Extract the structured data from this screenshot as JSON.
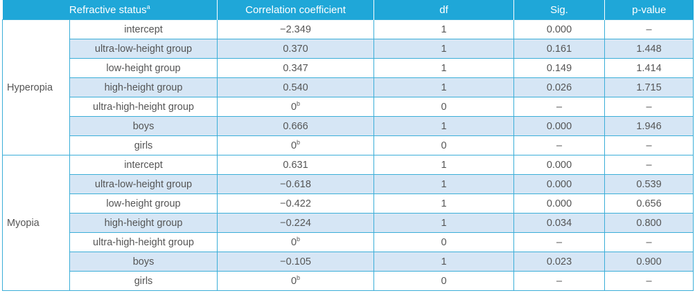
{
  "table": {
    "headers": {
      "status": "Refractive status",
      "status_sup": "a",
      "coef": "Correlation coefficient",
      "df": "df",
      "sig": "Sig.",
      "p": "p-value"
    },
    "groups": [
      {
        "label": "Hyperopia",
        "rows": [
          {
            "name": "intercept",
            "coef": "−2.349",
            "coef_sup": "",
            "df": "1",
            "sig": "0.000",
            "p": "–"
          },
          {
            "name": "ultra-low-height group",
            "coef": "0.370",
            "coef_sup": "",
            "df": "1",
            "sig": "0.161",
            "p": "1.448"
          },
          {
            "name": "low-height group",
            "coef": "0.347",
            "coef_sup": "",
            "df": "1",
            "sig": "0.149",
            "p": "1.414"
          },
          {
            "name": "high-height group",
            "coef": "0.540",
            "coef_sup": "",
            "df": "1",
            "sig": "0.026",
            "p": "1.715"
          },
          {
            "name": "ultra-high-height group",
            "coef": "0",
            "coef_sup": "b",
            "df": "0",
            "sig": "–",
            "p": "–"
          },
          {
            "name": "boys",
            "coef": "0.666",
            "coef_sup": "",
            "df": "1",
            "sig": "0.000",
            "p": "1.946"
          },
          {
            "name": "girls",
            "coef": "0",
            "coef_sup": "b",
            "df": "0",
            "sig": "–",
            "p": "–"
          }
        ]
      },
      {
        "label": "Myopia",
        "rows": [
          {
            "name": "intercept",
            "coef": "0.631",
            "coef_sup": "",
            "df": "1",
            "sig": "0.000",
            "p": "–"
          },
          {
            "name": "ultra-low-height group",
            "coef": "−0.618",
            "coef_sup": "",
            "df": "1",
            "sig": "0.000",
            "p": "0.539"
          },
          {
            "name": "low-height group",
            "coef": "−0.422",
            "coef_sup": "",
            "df": "1",
            "sig": "0.000",
            "p": "0.656"
          },
          {
            "name": "high-height group",
            "coef": "−0.224",
            "coef_sup": "",
            "df": "1",
            "sig": "0.034",
            "p": "0.800"
          },
          {
            "name": "ultra-high-height group",
            "coef": "0",
            "coef_sup": "b",
            "df": "0",
            "sig": "–",
            "p": "–"
          },
          {
            "name": "boys",
            "coef": "−0.105",
            "coef_sup": "",
            "df": "1",
            "sig": "0.023",
            "p": "0.900"
          },
          {
            "name": "girls",
            "coef": "0",
            "coef_sup": "b",
            "df": "0",
            "sig": "–",
            "p": "–"
          }
        ]
      }
    ],
    "colors": {
      "header_bg": "#1fa7d8",
      "header_text": "#ffffff",
      "shaded_row": "#d6e6f5",
      "border": "#3aaed8",
      "text": "#555555"
    }
  }
}
